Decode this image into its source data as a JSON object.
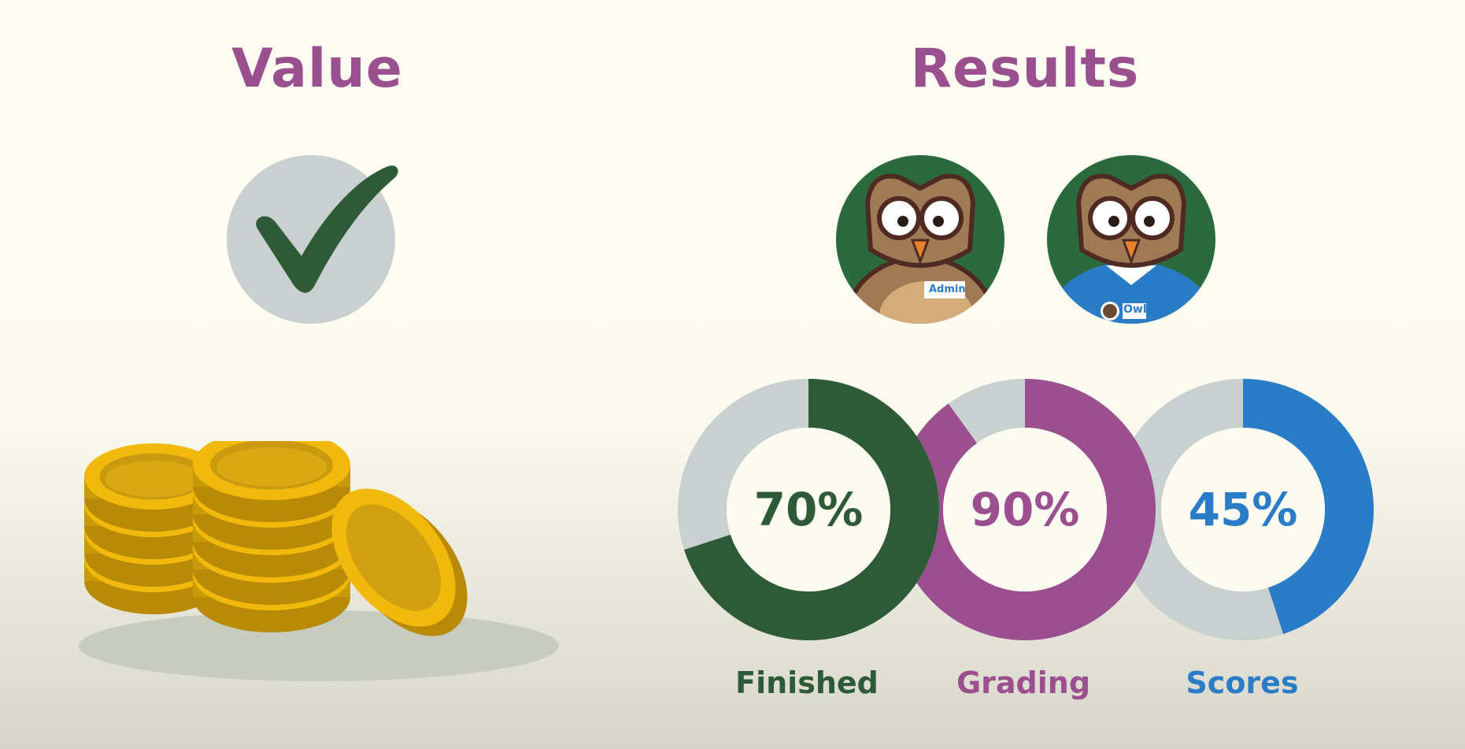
{
  "value_section": {
    "title": "Value",
    "check_icon": "checkmark-icon",
    "coins_icon": "gold-coins-icon"
  },
  "results_section": {
    "title": "Results",
    "avatars": [
      {
        "name": "owl-admin-avatar",
        "badge": "Admin"
      },
      {
        "name": "owl-employee-avatar",
        "badge": "OwlCo"
      }
    ],
    "metrics": [
      {
        "label": "Finished",
        "display": "70%",
        "value": 70,
        "color": "#2e5a37"
      },
      {
        "label": "Grading",
        "display": "90%",
        "value": 90,
        "color": "#9b4f8e"
      },
      {
        "label": "Scores",
        "display": "45%",
        "value": 45,
        "color": "#2b7cc6"
      }
    ],
    "track_color": "#c9d1d0"
  }
}
